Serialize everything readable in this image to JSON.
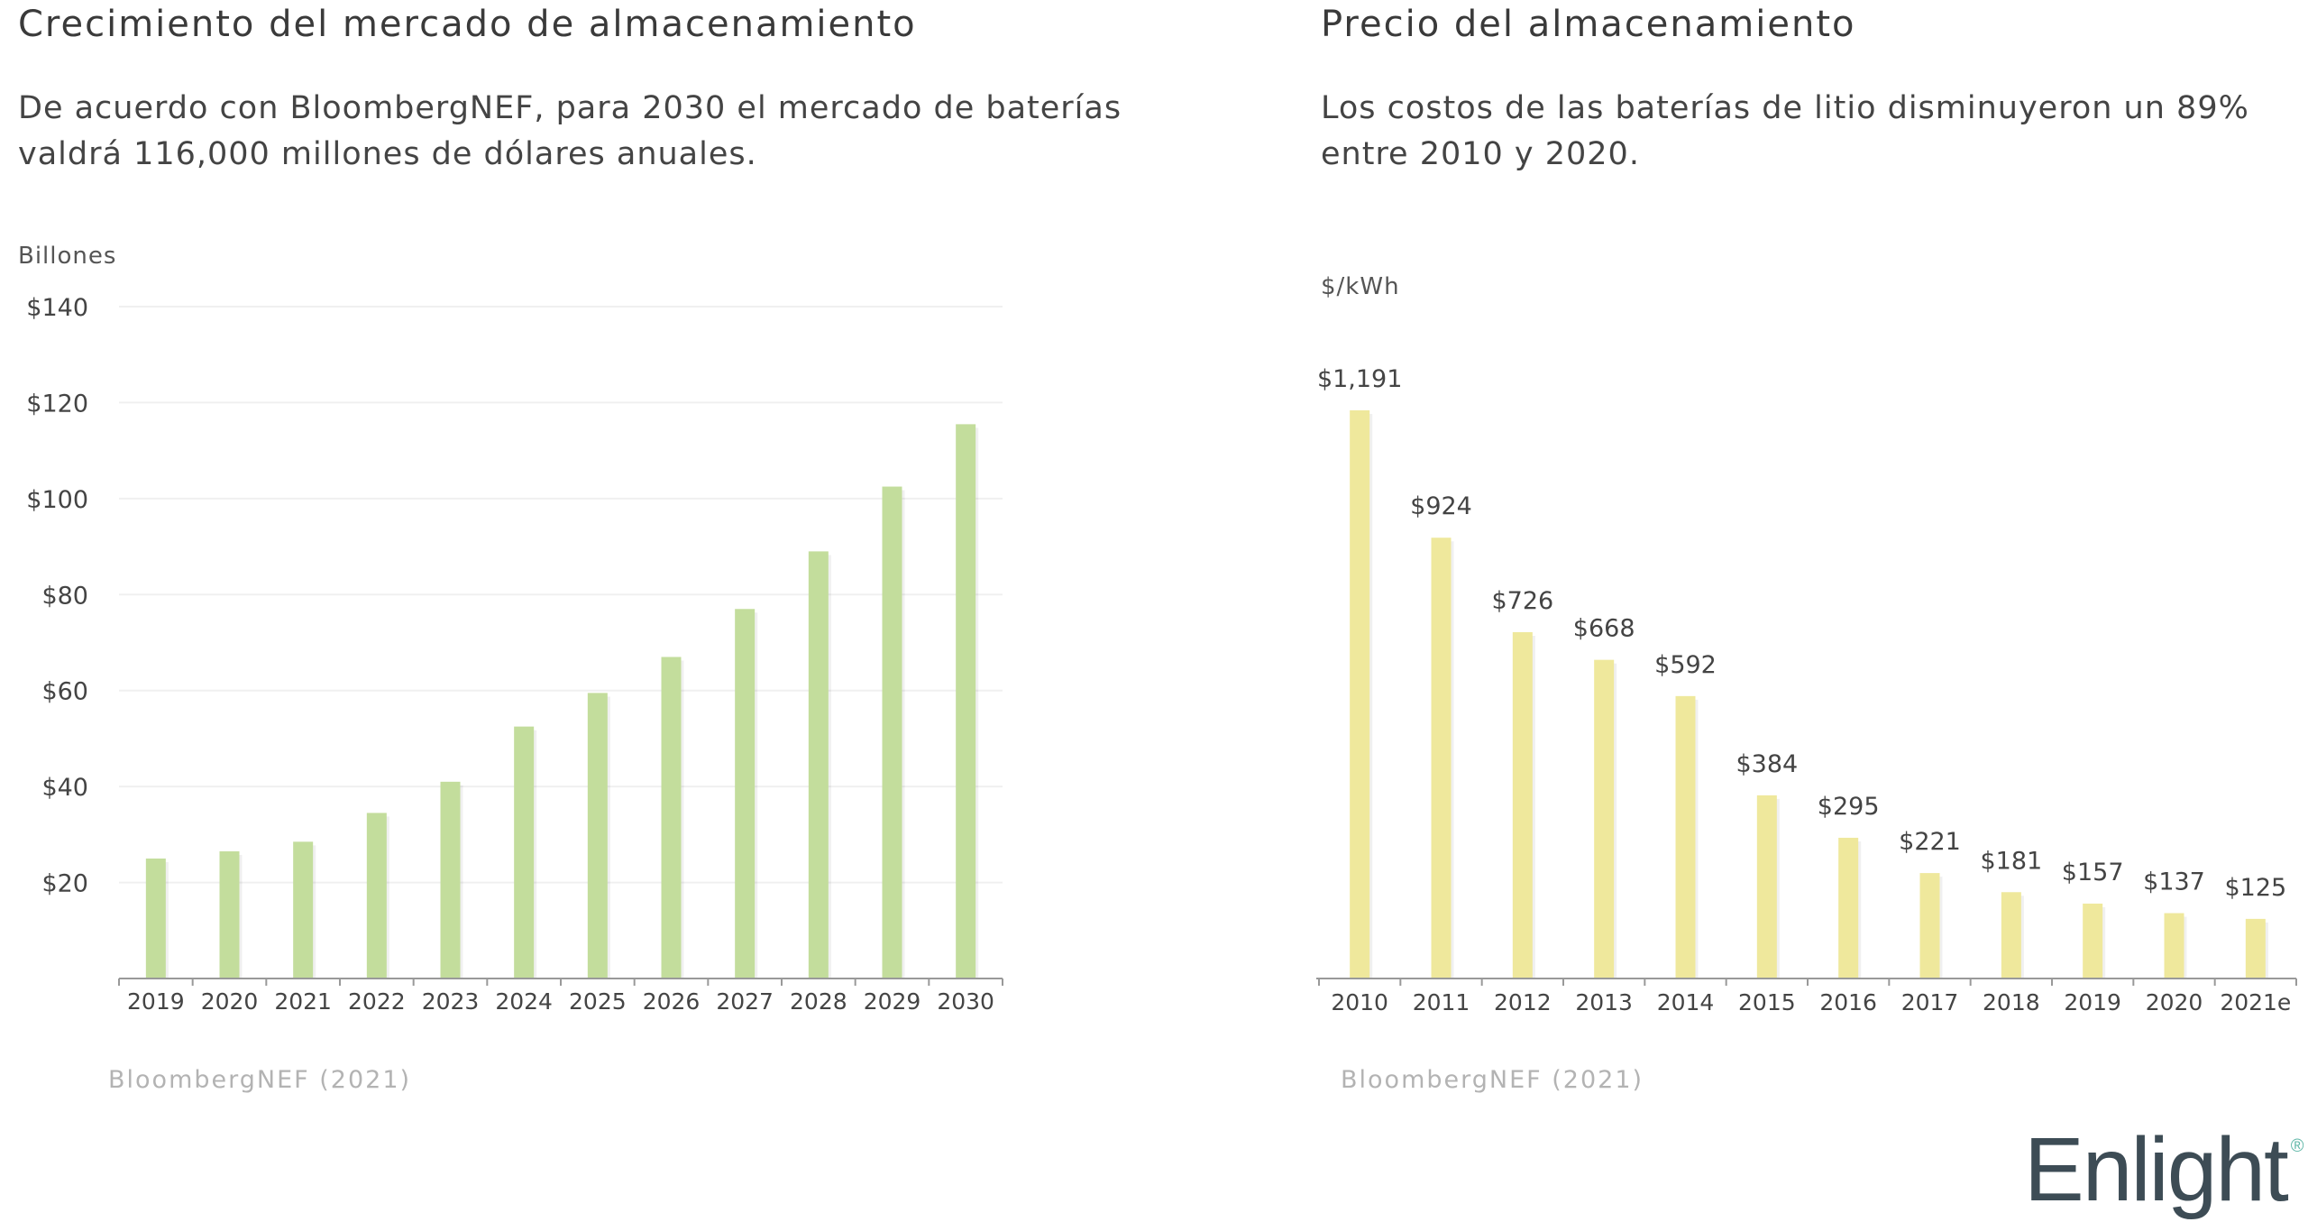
{
  "left": {
    "title": "Crecimiento del mercado de almacenamiento",
    "description_line1": "De acuerdo con BloombergNEF, para 2030 el mercado de baterías",
    "description_line2": "valdrá 116,000 millones de dólares anuales.",
    "source": "BloombergNEF (2021)"
  },
  "right": {
    "title": "Precio del almacenamiento",
    "description_line1": "Los costos de las baterías de litio disminuyeron un 89%",
    "description_line2": "entre 2010 y 2020.",
    "source": "BloombergNEF (2021)"
  },
  "brand": {
    "name": "Enlight",
    "mark": "®"
  },
  "colors": {
    "green_bar": "#c3dd9c",
    "yellow_bar": "#efe89c",
    "axis": "#999999",
    "grid": "#f0f0f0"
  },
  "chart_data": [
    {
      "type": "bar",
      "ylabel": "Billones",
      "categories": [
        "2019",
        "2020",
        "2021",
        "2022",
        "2023",
        "2024",
        "2025",
        "2026",
        "2027",
        "2028",
        "2029",
        "2030"
      ],
      "values": [
        25,
        26.5,
        28.5,
        34.5,
        41,
        52.5,
        59.5,
        67,
        77,
        89,
        102.5,
        115.5
      ],
      "y_ticks": [
        "$20",
        "$40",
        "$60",
        "$80",
        "$100",
        "$120",
        "$140"
      ],
      "y_tick_values": [
        20,
        40,
        60,
        80,
        100,
        120,
        140
      ],
      "ylim": [
        0,
        140
      ],
      "grid": true
    },
    {
      "type": "bar",
      "ylabel": "$/kWh",
      "categories": [
        "2010",
        "2011",
        "2012",
        "2013",
        "2014",
        "2015",
        "2016",
        "2017",
        "2018",
        "2019",
        "2020",
        "2021e"
      ],
      "values": [
        1191,
        924,
        726,
        668,
        592,
        384,
        295,
        221,
        181,
        157,
        137,
        125
      ],
      "data_labels": [
        "$1,191",
        "$924",
        "$726",
        "$668",
        "$592",
        "$384",
        "$295",
        "$221",
        "$181",
        "$157",
        "$137",
        "$125"
      ],
      "grid": false
    }
  ]
}
